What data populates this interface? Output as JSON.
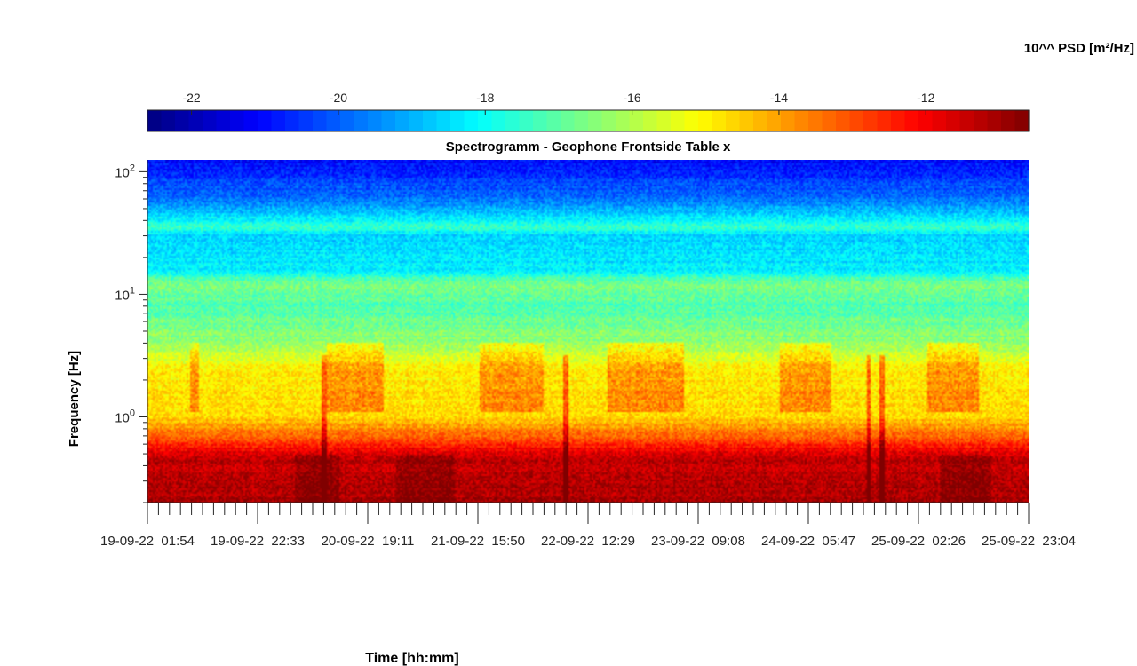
{
  "chart_data": {
    "type": "heatmap",
    "title": "Spectrogramm - Geophone Frontside Table x",
    "xlabel": "Time [hh:mm]",
    "ylabel": "Frequency [Hz]",
    "colorbar": {
      "label": "10^^ PSD [m²/Hz]",
      "range": [
        -22.6,
        -10.6
      ],
      "ticks": [
        -22,
        -20,
        -18,
        -16,
        -14,
        -12
      ],
      "tick_labels": [
        "-22",
        "-20",
        "-18",
        "-16",
        "-14",
        "-12"
      ],
      "placement": "top",
      "colormap": "jet"
    },
    "x_tick_labels": [
      "19-09-22  01:54",
      "19-09-22  22:33",
      "20-09-22  19:11",
      "21-09-22  15:50",
      "22-09-22  12:29",
      "23-09-22  09:08",
      "24-09-22  05:47",
      "25-09-22  02:26",
      "25-09-22  23:04"
    ],
    "x_range": [
      "19-09-22 01:54",
      "25-09-22 23:04"
    ],
    "y_scale": "log",
    "y_range_hz": [
      0.2,
      125
    ],
    "y_ticks_hz": [
      1,
      10,
      100
    ],
    "y_tick_labels": [
      {
        "base": "10",
        "exp": "0"
      },
      {
        "base": "10",
        "exp": "1"
      },
      {
        "base": "10",
        "exp": "2"
      }
    ],
    "psd_profile_log10": [
      {
        "f": 0.2,
        "level": -11.1
      },
      {
        "f": 0.45,
        "level": -11.4
      },
      {
        "f": 0.55,
        "level": -12.1
      },
      {
        "f": 0.7,
        "level": -13.3
      },
      {
        "f": 1.0,
        "level": -14.6
      },
      {
        "f": 2.5,
        "level": -15.0
      },
      {
        "f": 4.0,
        "level": -16.4
      },
      {
        "f": 8.0,
        "level": -17.2
      },
      {
        "f": 12.0,
        "level": -16.6
      },
      {
        "f": 16.0,
        "level": -18.3
      },
      {
        "f": 30.0,
        "level": -18.6
      },
      {
        "f": 35.0,
        "level": -17.5
      },
      {
        "f": 60.0,
        "level": -19.8
      },
      {
        "f": 125.0,
        "level": -21.0
      }
    ],
    "activity_windows": [
      {
        "start": 0.33,
        "end": 0.4
      },
      {
        "start": 1.4,
        "end": 1.85
      },
      {
        "start": 2.6,
        "end": 3.1
      },
      {
        "start": 3.6,
        "end": 4.2
      },
      {
        "start": 4.95,
        "end": 5.35
      },
      {
        "start": 6.1,
        "end": 6.5
      }
    ],
    "grid": false
  }
}
